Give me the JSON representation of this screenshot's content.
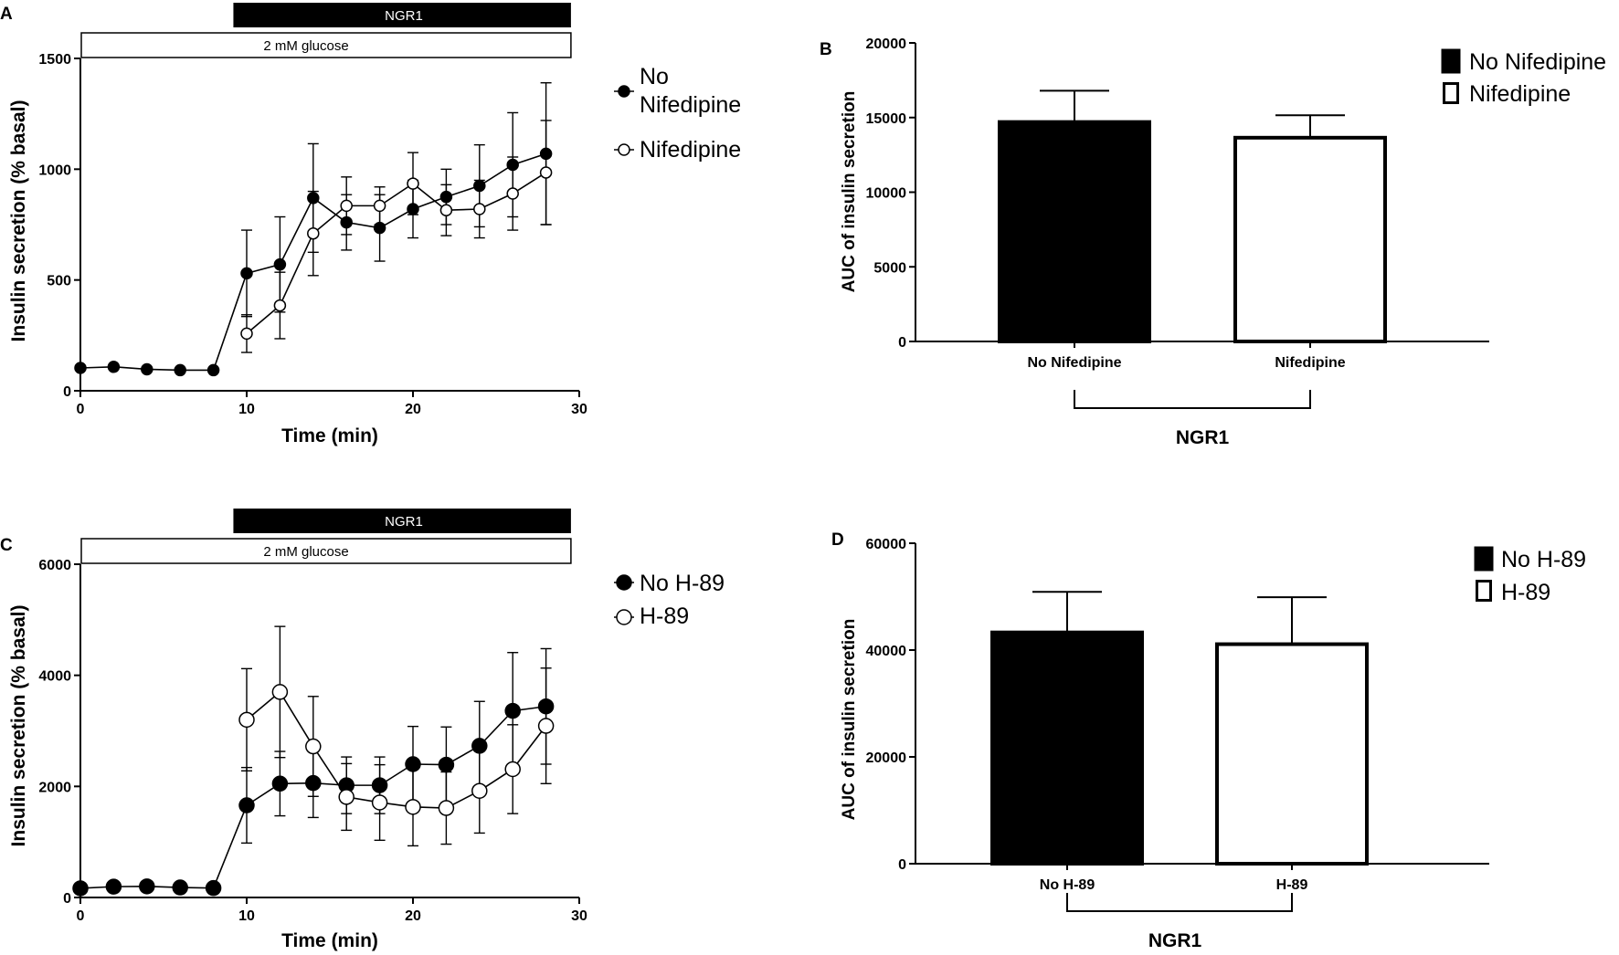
{
  "panels": [
    {
      "panel_letter": "A",
      "chart_data": {
        "type": "line",
        "treatment_bar": "NGR1",
        "condition_bar": "2 mM glucose",
        "xlabel": "Time (min)",
        "ylabel": "Insulin secretion  (% basal)",
        "xlim": [
          0,
          30
        ],
        "ylim": [
          0,
          1500
        ],
        "xticks": [
          0,
          10,
          20,
          30
        ],
        "yticks": [
          0,
          500,
          1000,
          1500
        ],
        "treatment_span": [
          9.2,
          29.5
        ],
        "condition_span": [
          0,
          29.5
        ],
        "legend_placement": "right",
        "series": [
          {
            "name": "No Nifedipine",
            "marker": "filled",
            "x": [
              0,
              2,
              4,
              6,
              8,
              10,
              12,
              14,
              16,
              18,
              20,
              22,
              24,
              26,
              28
            ],
            "y": [
              103,
              108,
              97,
              93,
              93,
              530,
              570,
              870,
              760,
              735,
              820,
              875,
              925,
              1020,
              1070
            ],
            "err": [
              0,
              0,
              0,
              0,
              0,
              195,
              215,
              245,
              125,
              150,
              130,
              125,
              185,
              235,
              320
            ]
          },
          {
            "name": "Nifedipine",
            "marker": "open",
            "x": [
              10,
              12,
              14,
              16,
              18,
              20,
              22,
              24,
              26,
              28
            ],
            "y": [
              258,
              385,
              710,
              835,
              835,
              935,
              815,
              820,
              890,
              985
            ],
            "err": [
              85,
              150,
              190,
              130,
              85,
              140,
              115,
              130,
              165,
              235
            ]
          }
        ]
      }
    },
    {
      "panel_letter": "B",
      "chart_data": {
        "type": "bar",
        "categories": [
          "No Nifedipine",
          "Nifedipine"
        ],
        "values": [
          14700,
          13650
        ],
        "errors": [
          2100,
          1500
        ],
        "fills": [
          "#000000",
          "#ffffff"
        ],
        "ylabel": "AUC of insulin secretion",
        "ylim": [
          0,
          20000
        ],
        "yticks": [
          0,
          5000,
          10000,
          15000,
          20000
        ],
        "group_label": "NGR1",
        "legend_placement": "top-right",
        "legend": [
          "No Nifedipine",
          "Nifedipine"
        ]
      }
    },
    {
      "panel_letter": "C",
      "chart_data": {
        "type": "line",
        "treatment_bar": "NGR1",
        "condition_bar": "2 mM glucose",
        "xlabel": "Time (min)",
        "ylabel": "Insulin secretion  (% basal)",
        "xlim": [
          0,
          30
        ],
        "ylim": [
          0,
          6000
        ],
        "xticks": [
          0,
          10,
          20,
          30
        ],
        "yticks": [
          0,
          2000,
          4000,
          6000
        ],
        "treatment_span": [
          9.2,
          29.5
        ],
        "condition_span": [
          0,
          29.5
        ],
        "legend_placement": "right",
        "series": [
          {
            "name": "No H-89",
            "marker": "filled",
            "x": [
              0,
              2,
              4,
              6,
              8,
              10,
              12,
              14,
              16,
              18,
              20,
              22,
              24,
              26,
              28
            ],
            "y": [
              165,
              195,
              200,
              180,
              170,
              1660,
              2050,
              2060,
              2020,
              2020,
              2400,
              2390,
              2730,
              3360,
              3440
            ],
            "err": [
              0,
              0,
              0,
              0,
              0,
              680,
              580,
              620,
              510,
              510,
              680,
              680,
              800,
              1050,
              1040
            ]
          },
          {
            "name": "H-89",
            "marker": "open",
            "x": [
              10,
              12,
              14,
              16,
              18,
              20,
              22,
              24,
              26,
              28
            ],
            "y": [
              3200,
              3700,
              2720,
              1810,
              1710,
              1630,
              1610,
              1920,
              2310,
              3090
            ],
            "err": [
              920,
              1180,
              900,
              600,
              680,
              700,
              650,
              760,
              800,
              1040
            ]
          }
        ]
      }
    },
    {
      "panel_letter": "D",
      "chart_data": {
        "type": "bar",
        "categories": [
          "No H-89",
          "H-89"
        ],
        "values": [
          43300,
          41100
        ],
        "errors": [
          7600,
          8800
        ],
        "fills": [
          "#000000",
          "#ffffff"
        ],
        "ylabel": "AUC of insulin secretion",
        "ylim": [
          0,
          60000
        ],
        "yticks": [
          0,
          20000,
          40000,
          60000
        ],
        "group_label": "NGR1",
        "legend_placement": "top-right",
        "legend": [
          "No H-89",
          "H-89"
        ]
      }
    }
  ]
}
